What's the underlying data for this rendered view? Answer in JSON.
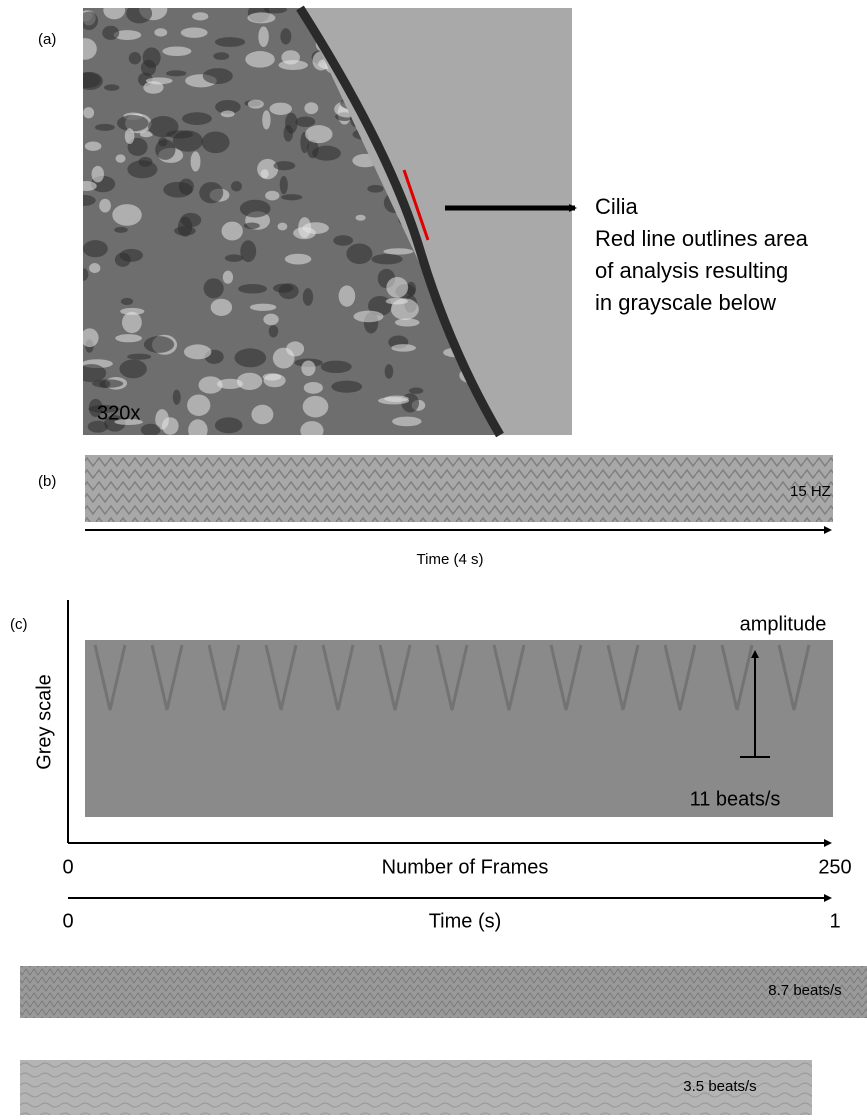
{
  "panel_a": {
    "label": "(a)",
    "magnification": "320x",
    "callout_title": "Cilia",
    "callout_lines": [
      "Red line outlines area",
      "of analysis resulting",
      "in grayscale below"
    ]
  },
  "panel_b": {
    "label": "(b)",
    "frequency": "15 HZ",
    "axis_label": "Time  (4 s)"
  },
  "panel_c": {
    "label": "(c)",
    "y_axis_label": "Grey scale",
    "amplitude_label": "amplitude",
    "rate": "11 beats/s",
    "frames_axis": {
      "start": "0",
      "label": "Number of Frames",
      "end": "250"
    },
    "time_axis": {
      "start": "0",
      "label": "Time (s)",
      "end": "1"
    }
  },
  "strips": [
    {
      "rate": "8.7 beats/s"
    },
    {
      "rate": "3.5 beats/s"
    }
  ]
}
